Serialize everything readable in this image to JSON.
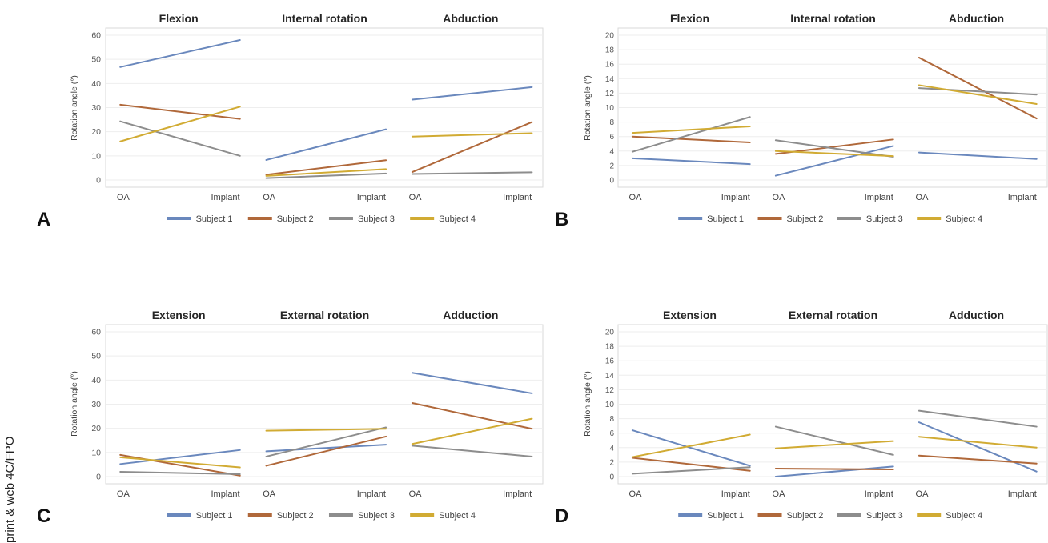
{
  "side_note": "print & web 4C/FPO",
  "categories": [
    "OA",
    "Implant"
  ],
  "legend": [
    {
      "name": "Subject 1",
      "color": "#6a88bd"
    },
    {
      "name": "Subject 2",
      "color": "#b0683a"
    },
    {
      "name": "Subject 3",
      "color": "#8d8d8d"
    },
    {
      "name": "Subject 4",
      "color": "#d1ab33"
    }
  ],
  "chart_data": [
    {
      "panel": "A",
      "type": "line",
      "ylabel": "Rotation angle (°)",
      "ylim": [
        0,
        60
      ],
      "yticks": [
        0,
        10,
        20,
        30,
        40,
        50,
        60
      ],
      "groups": [
        {
          "title": "Flexion",
          "series": [
            {
              "name": "Subject 1",
              "values": [
                46.8,
                58.0
              ]
            },
            {
              "name": "Subject 2",
              "values": [
                31.2,
                25.3
              ]
            },
            {
              "name": "Subject 3",
              "values": [
                24.3,
                10.0
              ]
            },
            {
              "name": "Subject 4",
              "values": [
                16.0,
                30.4
              ]
            }
          ]
        },
        {
          "title": "Internal rotation",
          "series": [
            {
              "name": "Subject 1",
              "values": [
                8.3,
                21.0
              ]
            },
            {
              "name": "Subject 2",
              "values": [
                2.2,
                8.2
              ]
            },
            {
              "name": "Subject 3",
              "values": [
                0.8,
                2.7
              ]
            },
            {
              "name": "Subject 4",
              "values": [
                1.7,
                4.5
              ]
            }
          ]
        },
        {
          "title": "Abduction",
          "series": [
            {
              "name": "Subject 1",
              "values": [
                33.3,
                38.5
              ]
            },
            {
              "name": "Subject 2",
              "values": [
                3.3,
                24.0
              ]
            },
            {
              "name": "Subject 3",
              "values": [
                2.5,
                3.2
              ]
            },
            {
              "name": "Subject 4",
              "values": [
                18.0,
                19.4
              ]
            }
          ]
        }
      ]
    },
    {
      "panel": "B",
      "type": "line",
      "ylabel": "Rotation angle (°)",
      "ylim": [
        0,
        20
      ],
      "yticks": [
        0,
        2,
        4,
        6,
        8,
        10,
        12,
        14,
        16,
        18,
        20
      ],
      "groups": [
        {
          "title": "Flexion",
          "series": [
            {
              "name": "Subject 1",
              "values": [
                3.0,
                2.2
              ]
            },
            {
              "name": "Subject 2",
              "values": [
                6.0,
                5.2
              ]
            },
            {
              "name": "Subject 3",
              "values": [
                3.9,
                8.7
              ]
            },
            {
              "name": "Subject 4",
              "values": [
                6.5,
                7.4
              ]
            }
          ]
        },
        {
          "title": "Internal rotation",
          "series": [
            {
              "name": "Subject 1",
              "values": [
                0.6,
                4.7
              ]
            },
            {
              "name": "Subject 2",
              "values": [
                3.6,
                5.6
              ]
            },
            {
              "name": "Subject 3",
              "values": [
                5.5,
                3.2
              ]
            },
            {
              "name": "Subject 4",
              "values": [
                4.0,
                3.3
              ]
            }
          ]
        },
        {
          "title": "Abduction",
          "series": [
            {
              "name": "Subject 1",
              "values": [
                3.8,
                2.9
              ]
            },
            {
              "name": "Subject 2",
              "values": [
                16.9,
                8.5
              ]
            },
            {
              "name": "Subject 3",
              "values": [
                12.7,
                11.8
              ]
            },
            {
              "name": "Subject 4",
              "values": [
                13.1,
                10.5
              ]
            }
          ]
        }
      ]
    },
    {
      "panel": "C",
      "type": "line",
      "ylabel": "Rotation angle (°)",
      "ylim": [
        0,
        60
      ],
      "yticks": [
        0,
        10,
        20,
        30,
        40,
        50,
        60
      ],
      "groups": [
        {
          "title": "Extension",
          "series": [
            {
              "name": "Subject 1",
              "values": [
                5.2,
                11.0
              ]
            },
            {
              "name": "Subject 2",
              "values": [
                9.0,
                0.4
              ]
            },
            {
              "name": "Subject 3",
              "values": [
                2.0,
                1.0
              ]
            },
            {
              "name": "Subject 4",
              "values": [
                8.0,
                3.8
              ]
            }
          ]
        },
        {
          "title": "External rotation",
          "series": [
            {
              "name": "Subject 1",
              "values": [
                10.5,
                13.2
              ]
            },
            {
              "name": "Subject 2",
              "values": [
                4.5,
                16.6
              ]
            },
            {
              "name": "Subject 3",
              "values": [
                8.3,
                20.4
              ]
            },
            {
              "name": "Subject 4",
              "values": [
                19.0,
                19.8
              ]
            }
          ]
        },
        {
          "title": "Adduction",
          "series": [
            {
              "name": "Subject 1",
              "values": [
                43.0,
                34.5
              ]
            },
            {
              "name": "Subject 2",
              "values": [
                30.5,
                19.8
              ]
            },
            {
              "name": "Subject 3",
              "values": [
                12.8,
                8.3
              ]
            },
            {
              "name": "Subject 4",
              "values": [
                13.5,
                24.0
              ]
            }
          ]
        }
      ]
    },
    {
      "panel": "D",
      "type": "line",
      "ylabel": "Rotation angle (°)",
      "ylim": [
        0,
        20
      ],
      "yticks": [
        0,
        2,
        4,
        6,
        8,
        10,
        12,
        14,
        16,
        18,
        20
      ],
      "groups": [
        {
          "title": "Extension",
          "series": [
            {
              "name": "Subject 1",
              "values": [
                6.4,
                1.5
              ]
            },
            {
              "name": "Subject 2",
              "values": [
                2.6,
                0.8
              ]
            },
            {
              "name": "Subject 3",
              "values": [
                0.4,
                1.3
              ]
            },
            {
              "name": "Subject 4",
              "values": [
                2.7,
                5.8
              ]
            }
          ]
        },
        {
          "title": "External rotation",
          "series": [
            {
              "name": "Subject 1",
              "values": [
                0.0,
                1.4
              ]
            },
            {
              "name": "Subject 2",
              "values": [
                1.1,
                1.0
              ]
            },
            {
              "name": "Subject 3",
              "values": [
                6.9,
                3.0
              ]
            },
            {
              "name": "Subject 4",
              "values": [
                3.9,
                4.9
              ]
            }
          ]
        },
        {
          "title": "Adduction",
          "series": [
            {
              "name": "Subject 1",
              "values": [
                7.5,
                0.7
              ]
            },
            {
              "name": "Subject 2",
              "values": [
                2.9,
                1.8
              ]
            },
            {
              "name": "Subject 3",
              "values": [
                9.1,
                6.9
              ]
            },
            {
              "name": "Subject 4",
              "values": [
                5.5,
                4.0
              ]
            }
          ]
        }
      ]
    }
  ]
}
